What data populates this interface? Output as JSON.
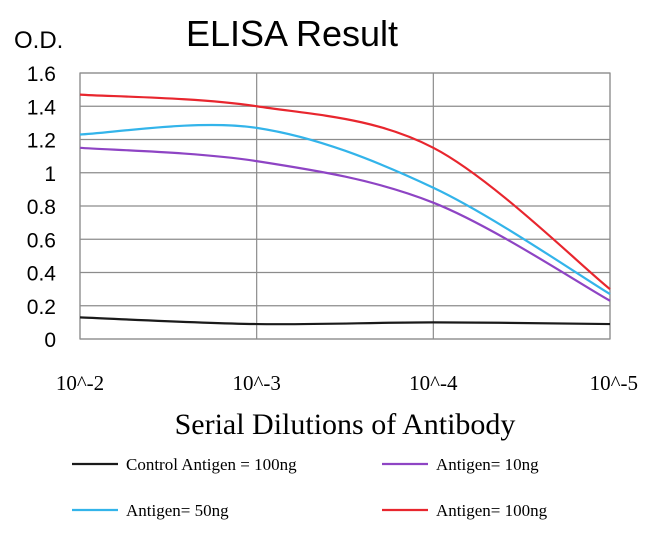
{
  "chart_data": {
    "type": "line",
    "title": "ELISA Result",
    "ylabel": "O.D.",
    "xlabel": "Serial Dilutions of Antibody",
    "categories": [
      "10^-2",
      "10^-3",
      "10^-4",
      "10^-5"
    ],
    "yticks": [
      "0",
      "0.2",
      "0.4",
      "0.6",
      "0.8",
      "1",
      "1.2",
      "1.4",
      "1.6"
    ],
    "ylim": [
      0,
      1.6
    ],
    "grid": true,
    "legend_position": "bottom",
    "series": [
      {
        "name": "Control Antigen = 100ng",
        "color": "#1a1a1a",
        "values": [
          0.13,
          0.09,
          0.1,
          0.09
        ]
      },
      {
        "name": "Antigen= 10ng",
        "color": "#8e44c4",
        "values": [
          1.15,
          1.07,
          0.82,
          0.23
        ]
      },
      {
        "name": "Antigen= 50ng",
        "color": "#33b4ea",
        "values": [
          1.23,
          1.27,
          0.91,
          0.27
        ]
      },
      {
        "name": "Antigen= 100ng",
        "color": "#e8262e",
        "values": [
          1.47,
          1.4,
          1.15,
          0.3
        ]
      }
    ]
  }
}
